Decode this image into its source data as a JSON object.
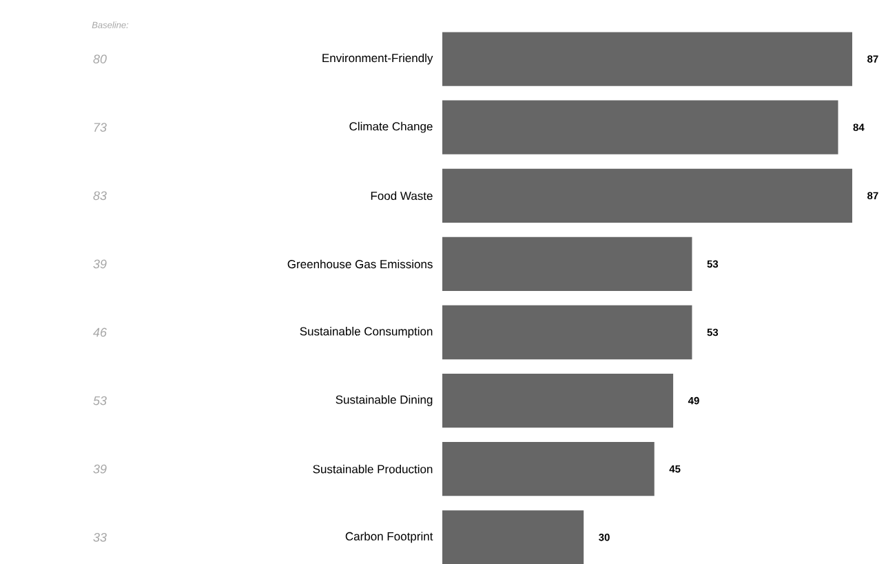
{
  "chart_data": {
    "type": "bar",
    "orientation": "horizontal",
    "categories": [
      "Environment-Friendly",
      "Climate Change",
      "Food Waste",
      "Greenhouse Gas Emissions",
      "Sustainable Consumption",
      "Sustainable Dining",
      "Sustainable Production",
      "Carbon Footprint"
    ],
    "values": [
      87,
      84,
      87,
      53,
      53,
      49,
      45,
      30
    ],
    "color": "#666666",
    "data_labels": true,
    "xlim": [
      0,
      87
    ],
    "tick_labels": "y",
    "annotations": [
      "Baseline:",
      "80",
      "73",
      "83",
      "39",
      "46",
      "53",
      "39",
      "33"
    ]
  }
}
